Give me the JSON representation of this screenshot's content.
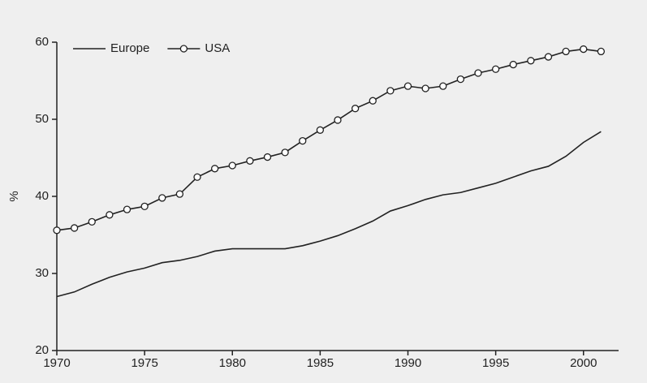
{
  "chart_data": {
    "type": "line",
    "ylabel": "%",
    "x": [
      1970,
      1971,
      1972,
      1973,
      1974,
      1975,
      1976,
      1977,
      1978,
      1979,
      1980,
      1981,
      1982,
      1983,
      1984,
      1985,
      1986,
      1987,
      1988,
      1989,
      1990,
      1991,
      1992,
      1993,
      1994,
      1995,
      1996,
      1997,
      1998,
      1999,
      2000,
      2001
    ],
    "series": [
      {
        "name": "Europe",
        "color": "#222222",
        "marker": false,
        "values": [
          27.0,
          27.6,
          28.6,
          29.5,
          30.2,
          30.7,
          31.4,
          31.7,
          32.2,
          32.9,
          33.2,
          33.2,
          33.2,
          33.2,
          33.6,
          34.2,
          34.9,
          35.8,
          36.8,
          38.1,
          38.8,
          39.6,
          40.2,
          40.5,
          41.1,
          41.7,
          42.5,
          43.3,
          43.9,
          45.2,
          47.0,
          48.4
        ]
      },
      {
        "name": "USA",
        "color": "#222222",
        "marker": true,
        "values": [
          35.6,
          35.9,
          36.7,
          37.6,
          38.3,
          38.7,
          39.8,
          40.3,
          42.5,
          43.6,
          44.0,
          44.6,
          45.1,
          45.7,
          47.2,
          48.6,
          49.9,
          51.4,
          52.4,
          53.7,
          54.3,
          54.0,
          54.3,
          55.2,
          56.0,
          56.5,
          57.1,
          57.6,
          58.1,
          58.8,
          59.1,
          58.8
        ]
      }
    ],
    "xlim": [
      1970,
      2002
    ],
    "xticks": [
      1970,
      1975,
      1980,
      1985,
      1990,
      1995,
      2000
    ],
    "ylim": [
      20,
      60
    ],
    "yticks": [
      20,
      30,
      40,
      50,
      60
    ],
    "legend": "top-left"
  }
}
